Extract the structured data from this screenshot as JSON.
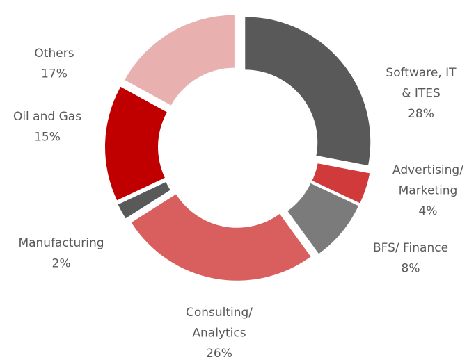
{
  "chart_data": {
    "type": "donut",
    "categories": [
      [
        "Software, IT",
        "& ITES"
      ],
      [
        "Advertising/",
        "Marketing"
      ],
      [
        "BFS/ Finance"
      ],
      [
        "Consulting/",
        "Analytics"
      ],
      [
        "Manufacturing"
      ],
      [
        "Oil and Gas"
      ],
      [
        "Others"
      ]
    ],
    "values": [
      28,
      4,
      8,
      26,
      2,
      15,
      17
    ],
    "value_labels": [
      "28%",
      "4%",
      "8%",
      "26%",
      "2%",
      "15%",
      "17%"
    ],
    "colors": [
      "#595959",
      "#d03a3a",
      "#7b7b7b",
      "#d95f5f",
      "#595959",
      "#c00000",
      "#e9b0b0"
    ]
  }
}
